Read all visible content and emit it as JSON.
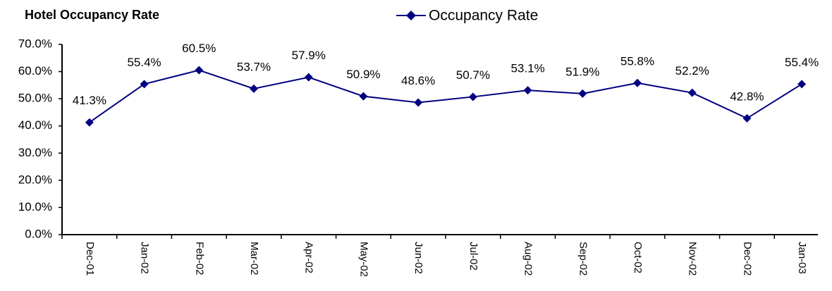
{
  "chart_data": {
    "type": "line",
    "title": "Hotel Occupancy Rate",
    "categories": [
      "Dec-01",
      "Jan-02",
      "Feb-02",
      "Mar-02",
      "Apr-02",
      "May-02",
      "Jun-02",
      "Jul-02",
      "Aug-02",
      "Sep-02",
      "Oct-02",
      "Nov-02",
      "Dec-02",
      "Jan-03"
    ],
    "series": [
      {
        "name": "Occupancy Rate",
        "color": "#000080",
        "values": [
          41.3,
          55.4,
          60.5,
          53.7,
          57.9,
          50.9,
          48.6,
          50.7,
          53.1,
          51.9,
          55.8,
          52.2,
          42.8,
          55.4
        ],
        "value_labels": [
          "41.3%",
          "55.4%",
          "60.5%",
          "53.7%",
          "57.9%",
          "50.9%",
          "48.6%",
          "50.7%",
          "53.1%",
          "51.9%",
          "55.8%",
          "52.2%",
          "42.8%",
          "55.4%"
        ]
      }
    ],
    "ylim": [
      0,
      70
    ],
    "yticks": [
      {
        "value": 0,
        "label": "0.0%"
      },
      {
        "value": 10,
        "label": "10.0%"
      },
      {
        "value": 20,
        "label": "20.0%"
      },
      {
        "value": 30,
        "label": "30.0%"
      },
      {
        "value": 40,
        "label": "40.0%"
      },
      {
        "value": 50,
        "label": "50.0%"
      },
      {
        "value": 60,
        "label": "60.0%"
      },
      {
        "value": 70,
        "label": "70.0%"
      }
    ],
    "grid": false,
    "legend": "top"
  }
}
